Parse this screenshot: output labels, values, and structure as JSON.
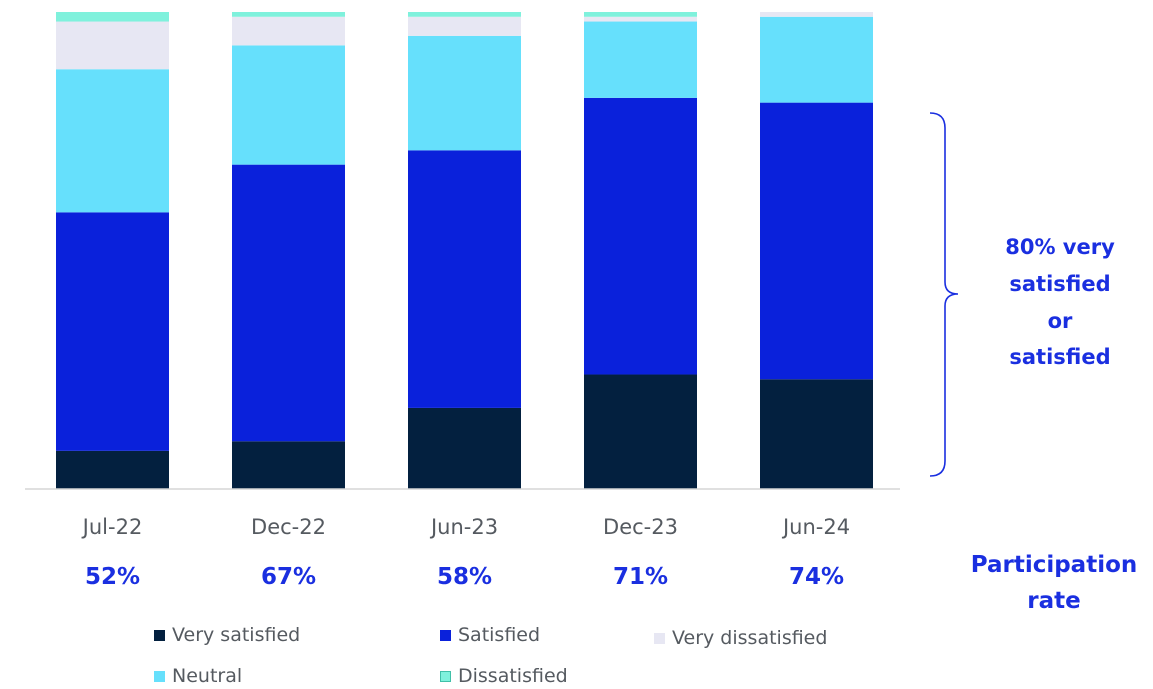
{
  "chart_data": {
    "type": "bar",
    "stacked": true,
    "categories": [
      "Jul-22",
      "Dec-22",
      "Jun-23",
      "Dec-23",
      "Jun-24"
    ],
    "ylim": [
      0,
      100
    ],
    "series": [
      {
        "name": "Very satisfied",
        "color": "#03203f",
        "values": [
          8,
          10,
          17,
          24,
          23
        ]
      },
      {
        "name": "Satisfied",
        "color": "#0a21db",
        "values": [
          50,
          58,
          54,
          58,
          58
        ]
      },
      {
        "name": "Neutral",
        "color": "#66e0fc",
        "values": [
          30,
          25,
          24,
          16,
          18
        ]
      },
      {
        "name": "Very dissatisfied",
        "color": "#e7e7f3",
        "values": [
          10,
          6,
          4,
          1,
          1
        ]
      },
      {
        "name": "Dissatisfied",
        "color": "#7ff1dc",
        "values": [
          2,
          1,
          1,
          1,
          0
        ]
      }
    ],
    "participation": {
      "values": [
        "52%",
        "67%",
        "58%",
        "71%",
        "74%"
      ],
      "label": "Participation rate"
    },
    "annotation": {
      "lines": [
        "80% very",
        "satisfied",
        "or",
        "satisfied"
      ]
    },
    "legend": {
      "row1": [
        "Very satisfied",
        "Satisfied",
        "Very dissatisfied"
      ],
      "row2": [
        "Neutral",
        "Dissatisfied"
      ]
    }
  }
}
